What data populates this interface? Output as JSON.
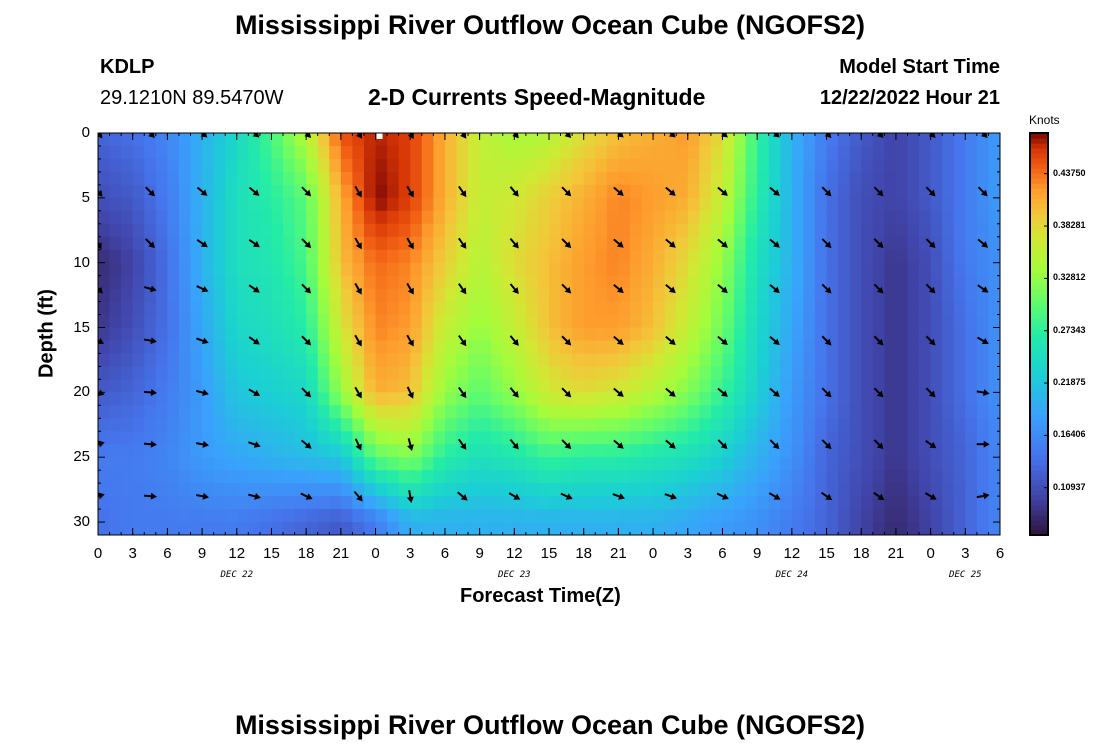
{
  "page_title": "Mississippi River Outflow Ocean Cube (NGOFS2)",
  "page_title_repeat": "Mississippi River Outflow Ocean Cube (NGOFS2)",
  "station": {
    "id": "KDLP",
    "coords": "29.1210N  89.5470W"
  },
  "model": {
    "label": "Model Start Time",
    "start": "12/22/2022 Hour 21"
  },
  "chart_data": {
    "type": "heatmap",
    "title": "2-D Currents Speed-Magnitude",
    "xlabel": "Forecast Time(Z)",
    "ylabel": "Depth (ft)",
    "x_tick_labels": [
      "0",
      "3",
      "6",
      "9",
      "12",
      "15",
      "18",
      "21",
      "0",
      "3",
      "6",
      "9",
      "12",
      "15",
      "18",
      "21",
      "0",
      "3",
      "6",
      "9",
      "12",
      "15",
      "18",
      "21",
      "0",
      "3",
      "6"
    ],
    "x_range_hours": [
      0,
      78
    ],
    "day_labels": [
      {
        "label": "DEC 22",
        "hour": 12
      },
      {
        "label": "DEC 23",
        "hour": 36
      },
      {
        "label": "DEC 24",
        "hour": 60
      },
      {
        "label": "DEC 25",
        "hour": 75
      }
    ],
    "y_ticks": [
      0,
      5,
      10,
      15,
      20,
      25,
      30
    ],
    "y_range": [
      0,
      31
    ],
    "y_inverted": true,
    "colorbar": {
      "label": "Knots",
      "ticks": [
        "0.43750",
        "0.38281",
        "0.32812",
        "0.27343",
        "0.21875",
        "0.16406",
        "0.10937"
      ],
      "tick_values": [
        0.4375,
        0.38281,
        0.32812,
        0.27343,
        0.21875,
        0.16406,
        0.10937
      ],
      "range": [
        0.06,
        0.48
      ]
    },
    "speed_model": {
      "description": "Estimated current speed (knots) vs forecast hour and depth read from the colormap",
      "time_hours": [
        0,
        3,
        6,
        9,
        12,
        15,
        18,
        21,
        24,
        27,
        30,
        33,
        36,
        39,
        42,
        45,
        48,
        51,
        54,
        57,
        60,
        63,
        66,
        69,
        72,
        75,
        78
      ],
      "depths_ft": [
        0,
        5,
        10,
        15,
        20,
        25,
        30
      ],
      "speed": [
        [
          0.13,
          0.11,
          0.08,
          0.09,
          0.12,
          0.15,
          0.14
        ],
        [
          0.14,
          0.12,
          0.1,
          0.11,
          0.13,
          0.15,
          0.15
        ],
        [
          0.16,
          0.15,
          0.14,
          0.14,
          0.15,
          0.16,
          0.15
        ],
        [
          0.2,
          0.2,
          0.2,
          0.19,
          0.18,
          0.18,
          0.15
        ],
        [
          0.24,
          0.25,
          0.25,
          0.24,
          0.22,
          0.19,
          0.15
        ],
        [
          0.29,
          0.27,
          0.26,
          0.25,
          0.23,
          0.2,
          0.14
        ],
        [
          0.35,
          0.3,
          0.29,
          0.27,
          0.24,
          0.21,
          0.13
        ],
        [
          0.45,
          0.41,
          0.4,
          0.37,
          0.33,
          0.22,
          0.12
        ],
        [
          0.47,
          0.48,
          0.44,
          0.43,
          0.41,
          0.3,
          0.15
        ],
        [
          0.46,
          0.46,
          0.43,
          0.42,
          0.4,
          0.32,
          0.2
        ],
        [
          0.41,
          0.41,
          0.39,
          0.36,
          0.33,
          0.27,
          0.2
        ],
        [
          0.36,
          0.36,
          0.35,
          0.33,
          0.3,
          0.25,
          0.2
        ],
        [
          0.34,
          0.37,
          0.38,
          0.36,
          0.33,
          0.26,
          0.2
        ],
        [
          0.35,
          0.39,
          0.4,
          0.4,
          0.37,
          0.28,
          0.2
        ],
        [
          0.38,
          0.41,
          0.42,
          0.42,
          0.38,
          0.27,
          0.2
        ],
        [
          0.4,
          0.43,
          0.43,
          0.42,
          0.37,
          0.27,
          0.2
        ],
        [
          0.41,
          0.42,
          0.41,
          0.4,
          0.35,
          0.26,
          0.2
        ],
        [
          0.42,
          0.41,
          0.38,
          0.36,
          0.32,
          0.25,
          0.19
        ],
        [
          0.38,
          0.36,
          0.33,
          0.31,
          0.28,
          0.23,
          0.18
        ],
        [
          0.28,
          0.27,
          0.25,
          0.24,
          0.23,
          0.2,
          0.17
        ],
        [
          0.2,
          0.2,
          0.2,
          0.19,
          0.18,
          0.17,
          0.15
        ],
        [
          0.15,
          0.14,
          0.14,
          0.14,
          0.14,
          0.13,
          0.13
        ],
        [
          0.12,
          0.11,
          0.11,
          0.11,
          0.11,
          0.11,
          0.1
        ],
        [
          0.1,
          0.1,
          0.09,
          0.09,
          0.09,
          0.09,
          0.08
        ],
        [
          0.12,
          0.12,
          0.11,
          0.11,
          0.11,
          0.11,
          0.1
        ],
        [
          0.15,
          0.15,
          0.15,
          0.14,
          0.14,
          0.13,
          0.13
        ],
        [
          0.18,
          0.18,
          0.17,
          0.17,
          0.17,
          0.16,
          0.16
        ]
      ]
    },
    "current_vectors": {
      "description": "Current direction arrows; direction in degrees clockwise from east (screen coordinates)",
      "time_hours": [
        0,
        4.5,
        9,
        13.5,
        18,
        22.5,
        27,
        31.5,
        36,
        40.5,
        45,
        49.5,
        54,
        58.5,
        63,
        67.5,
        72,
        76.5
      ],
      "depths_ft": [
        0,
        4.5,
        8.5,
        12,
        16,
        20,
        24,
        28
      ],
      "direction_deg": [
        [
          50,
          45,
          40,
          40,
          45,
          55,
          60,
          55,
          50,
          45,
          40,
          40,
          40,
          40,
          45,
          45,
          45,
          45
        ],
        [
          50,
          45,
          40,
          40,
          45,
          60,
          60,
          55,
          50,
          45,
          40,
          40,
          40,
          40,
          45,
          45,
          45,
          45
        ],
        [
          60,
          45,
          35,
          35,
          45,
          60,
          60,
          55,
          50,
          45,
          40,
          40,
          40,
          40,
          45,
          45,
          45,
          40
        ],
        [
          45,
          15,
          25,
          35,
          45,
          60,
          60,
          55,
          50,
          45,
          40,
          40,
          40,
          40,
          45,
          45,
          45,
          35
        ],
        [
          30,
          10,
          20,
          35,
          45,
          60,
          60,
          55,
          50,
          45,
          40,
          40,
          40,
          40,
          45,
          45,
          45,
          30
        ],
        [
          20,
          5,
          15,
          30,
          45,
          60,
          65,
          55,
          50,
          45,
          40,
          40,
          40,
          40,
          45,
          45,
          45,
          10
        ],
        [
          -15,
          5,
          10,
          20,
          40,
          65,
          75,
          55,
          50,
          45,
          40,
          40,
          45,
          45,
          45,
          45,
          35,
          0
        ],
        [
          -15,
          5,
          10,
          15,
          25,
          50,
          80,
          40,
          30,
          25,
          20,
          20,
          25,
          30,
          35,
          35,
          30,
          -10
        ]
      ]
    }
  }
}
